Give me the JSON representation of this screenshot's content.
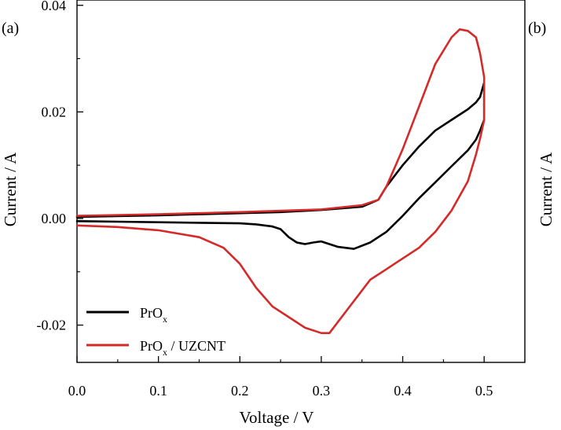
{
  "panels": {
    "a": "(a)",
    "b": "(b)"
  },
  "secondary_ylabel": "Current / A",
  "chart_data": {
    "type": "line",
    "title": "",
    "xlabel": "Voltage / V",
    "ylabel": "Current / A",
    "xlim": [
      0.0,
      0.55
    ],
    "ylim": [
      -0.027,
      0.041
    ],
    "xticks": [
      "0.0",
      "0.1",
      "0.2",
      "0.3",
      "0.4",
      "0.5"
    ],
    "xtick_values": [
      0.0,
      0.1,
      0.2,
      0.3,
      0.4,
      0.5
    ],
    "yticks": [
      "-0.02",
      "0.00",
      "0.02",
      "0.04"
    ],
    "ytick_values": [
      -0.02,
      0.0,
      0.02,
      0.04
    ],
    "grid": false,
    "legend_position": "bottom-left",
    "series": [
      {
        "name": "PrOx",
        "legend_base": "PrO",
        "legend_sub": "x",
        "legend_suffix": "",
        "color": "#000000",
        "x": [
          0.0,
          0.1,
          0.2,
          0.25,
          0.3,
          0.35,
          0.37,
          0.38,
          0.4,
          0.42,
          0.44,
          0.46,
          0.48,
          0.49,
          0.495,
          0.5,
          0.5,
          0.5,
          0.5,
          0.495,
          0.49,
          0.48,
          0.46,
          0.44,
          0.42,
          0.4,
          0.38,
          0.36,
          0.34,
          0.32,
          0.3,
          0.29,
          0.28,
          0.27,
          0.26,
          0.25,
          0.24,
          0.22,
          0.2,
          0.15,
          0.1,
          0.05,
          0.0
        ],
        "y": [
          0.0003,
          0.0006,
          0.001,
          0.0012,
          0.0016,
          0.0022,
          0.0035,
          0.006,
          0.01,
          0.0135,
          0.0165,
          0.0185,
          0.0205,
          0.0218,
          0.0228,
          0.0255,
          0.0235,
          0.0205,
          0.0185,
          0.0165,
          0.0148,
          0.0128,
          0.0098,
          0.0068,
          0.0038,
          0.0005,
          -0.0025,
          -0.0045,
          -0.0057,
          -0.0053,
          -0.0043,
          -0.0045,
          -0.0048,
          -0.0045,
          -0.0035,
          -0.002,
          -0.0015,
          -0.0011,
          -0.0009,
          -0.0008,
          -0.0007,
          -0.0006,
          -0.0005
        ]
      },
      {
        "name": "PrOx / UZCNT",
        "legend_base": "PrO",
        "legend_sub": "x",
        "legend_suffix": " / UZCNT",
        "color": "#d42a2a",
        "x": [
          0.0,
          0.1,
          0.2,
          0.3,
          0.35,
          0.37,
          0.38,
          0.4,
          0.42,
          0.44,
          0.46,
          0.47,
          0.48,
          0.49,
          0.495,
          0.5,
          0.5,
          0.5,
          0.495,
          0.49,
          0.48,
          0.46,
          0.44,
          0.42,
          0.4,
          0.38,
          0.36,
          0.34,
          0.32,
          0.31,
          0.3,
          0.28,
          0.26,
          0.24,
          0.22,
          0.2,
          0.18,
          0.15,
          0.1,
          0.05,
          0.0
        ],
        "y": [
          0.0005,
          0.0008,
          0.0012,
          0.0017,
          0.0025,
          0.0035,
          0.006,
          0.013,
          0.021,
          0.029,
          0.034,
          0.0355,
          0.0352,
          0.034,
          0.031,
          0.0265,
          0.0225,
          0.0185,
          0.015,
          0.012,
          0.007,
          0.0015,
          -0.0025,
          -0.0055,
          -0.0075,
          -0.0095,
          -0.0115,
          -0.0155,
          -0.0195,
          -0.0215,
          -0.0215,
          -0.0205,
          -0.0185,
          -0.0165,
          -0.013,
          -0.0085,
          -0.0055,
          -0.0035,
          -0.0022,
          -0.0016,
          -0.0013
        ]
      }
    ]
  }
}
